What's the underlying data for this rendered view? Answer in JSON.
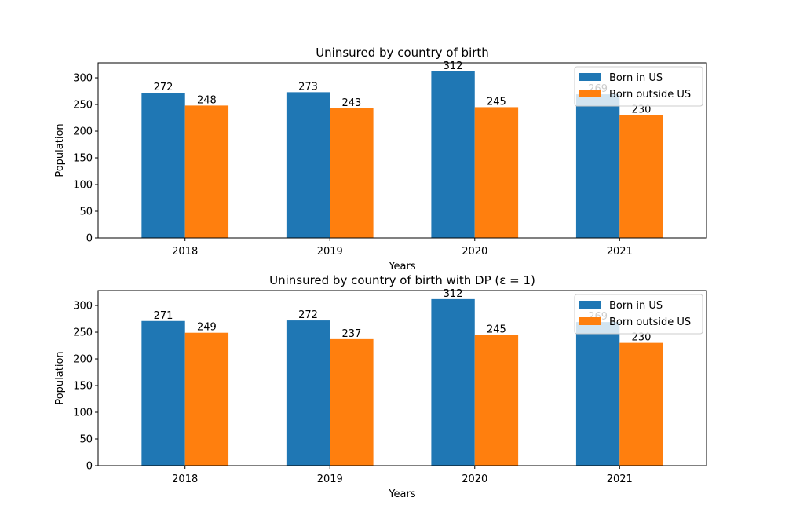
{
  "chart_data": [
    {
      "type": "bar",
      "title": "Uninsured by country of birth",
      "xlabel": "Years",
      "ylabel": "Population",
      "categories": [
        "2018",
        "2019",
        "2020",
        "2021"
      ],
      "ylim": [
        0,
        328
      ],
      "yticks": [
        0,
        50,
        100,
        150,
        200,
        250,
        300
      ],
      "legend_position": "top-right",
      "series": [
        {
          "name": "Born in US",
          "color": "#1f77b4",
          "values": [
            272,
            273,
            312,
            269
          ],
          "labels": [
            "272",
            "273",
            "312",
            "269"
          ]
        },
        {
          "name": "Born outside US",
          "color": "#ff7f0e",
          "values": [
            248,
            243,
            245,
            230
          ],
          "labels": [
            "248",
            "243",
            "245",
            "230"
          ]
        }
      ]
    },
    {
      "type": "bar",
      "title": "Uninsured by country of birth with DP (ε = 1)",
      "xlabel": "Years",
      "ylabel": "Population",
      "categories": [
        "2018",
        "2019",
        "2020",
        "2021"
      ],
      "ylim": [
        0,
        328
      ],
      "yticks": [
        0,
        50,
        100,
        150,
        200,
        250,
        300
      ],
      "legend_position": "top-right",
      "series": [
        {
          "name": "Born in US",
          "color": "#1f77b4",
          "values": [
            271,
            272,
            312,
            269
          ],
          "labels": [
            "271",
            "272",
            "312",
            "269"
          ]
        },
        {
          "name": "Born outside US",
          "color": "#ff7f0e",
          "values": [
            249,
            237,
            245,
            230
          ],
          "labels": [
            "249",
            "237",
            "245",
            "230"
          ]
        }
      ]
    }
  ]
}
